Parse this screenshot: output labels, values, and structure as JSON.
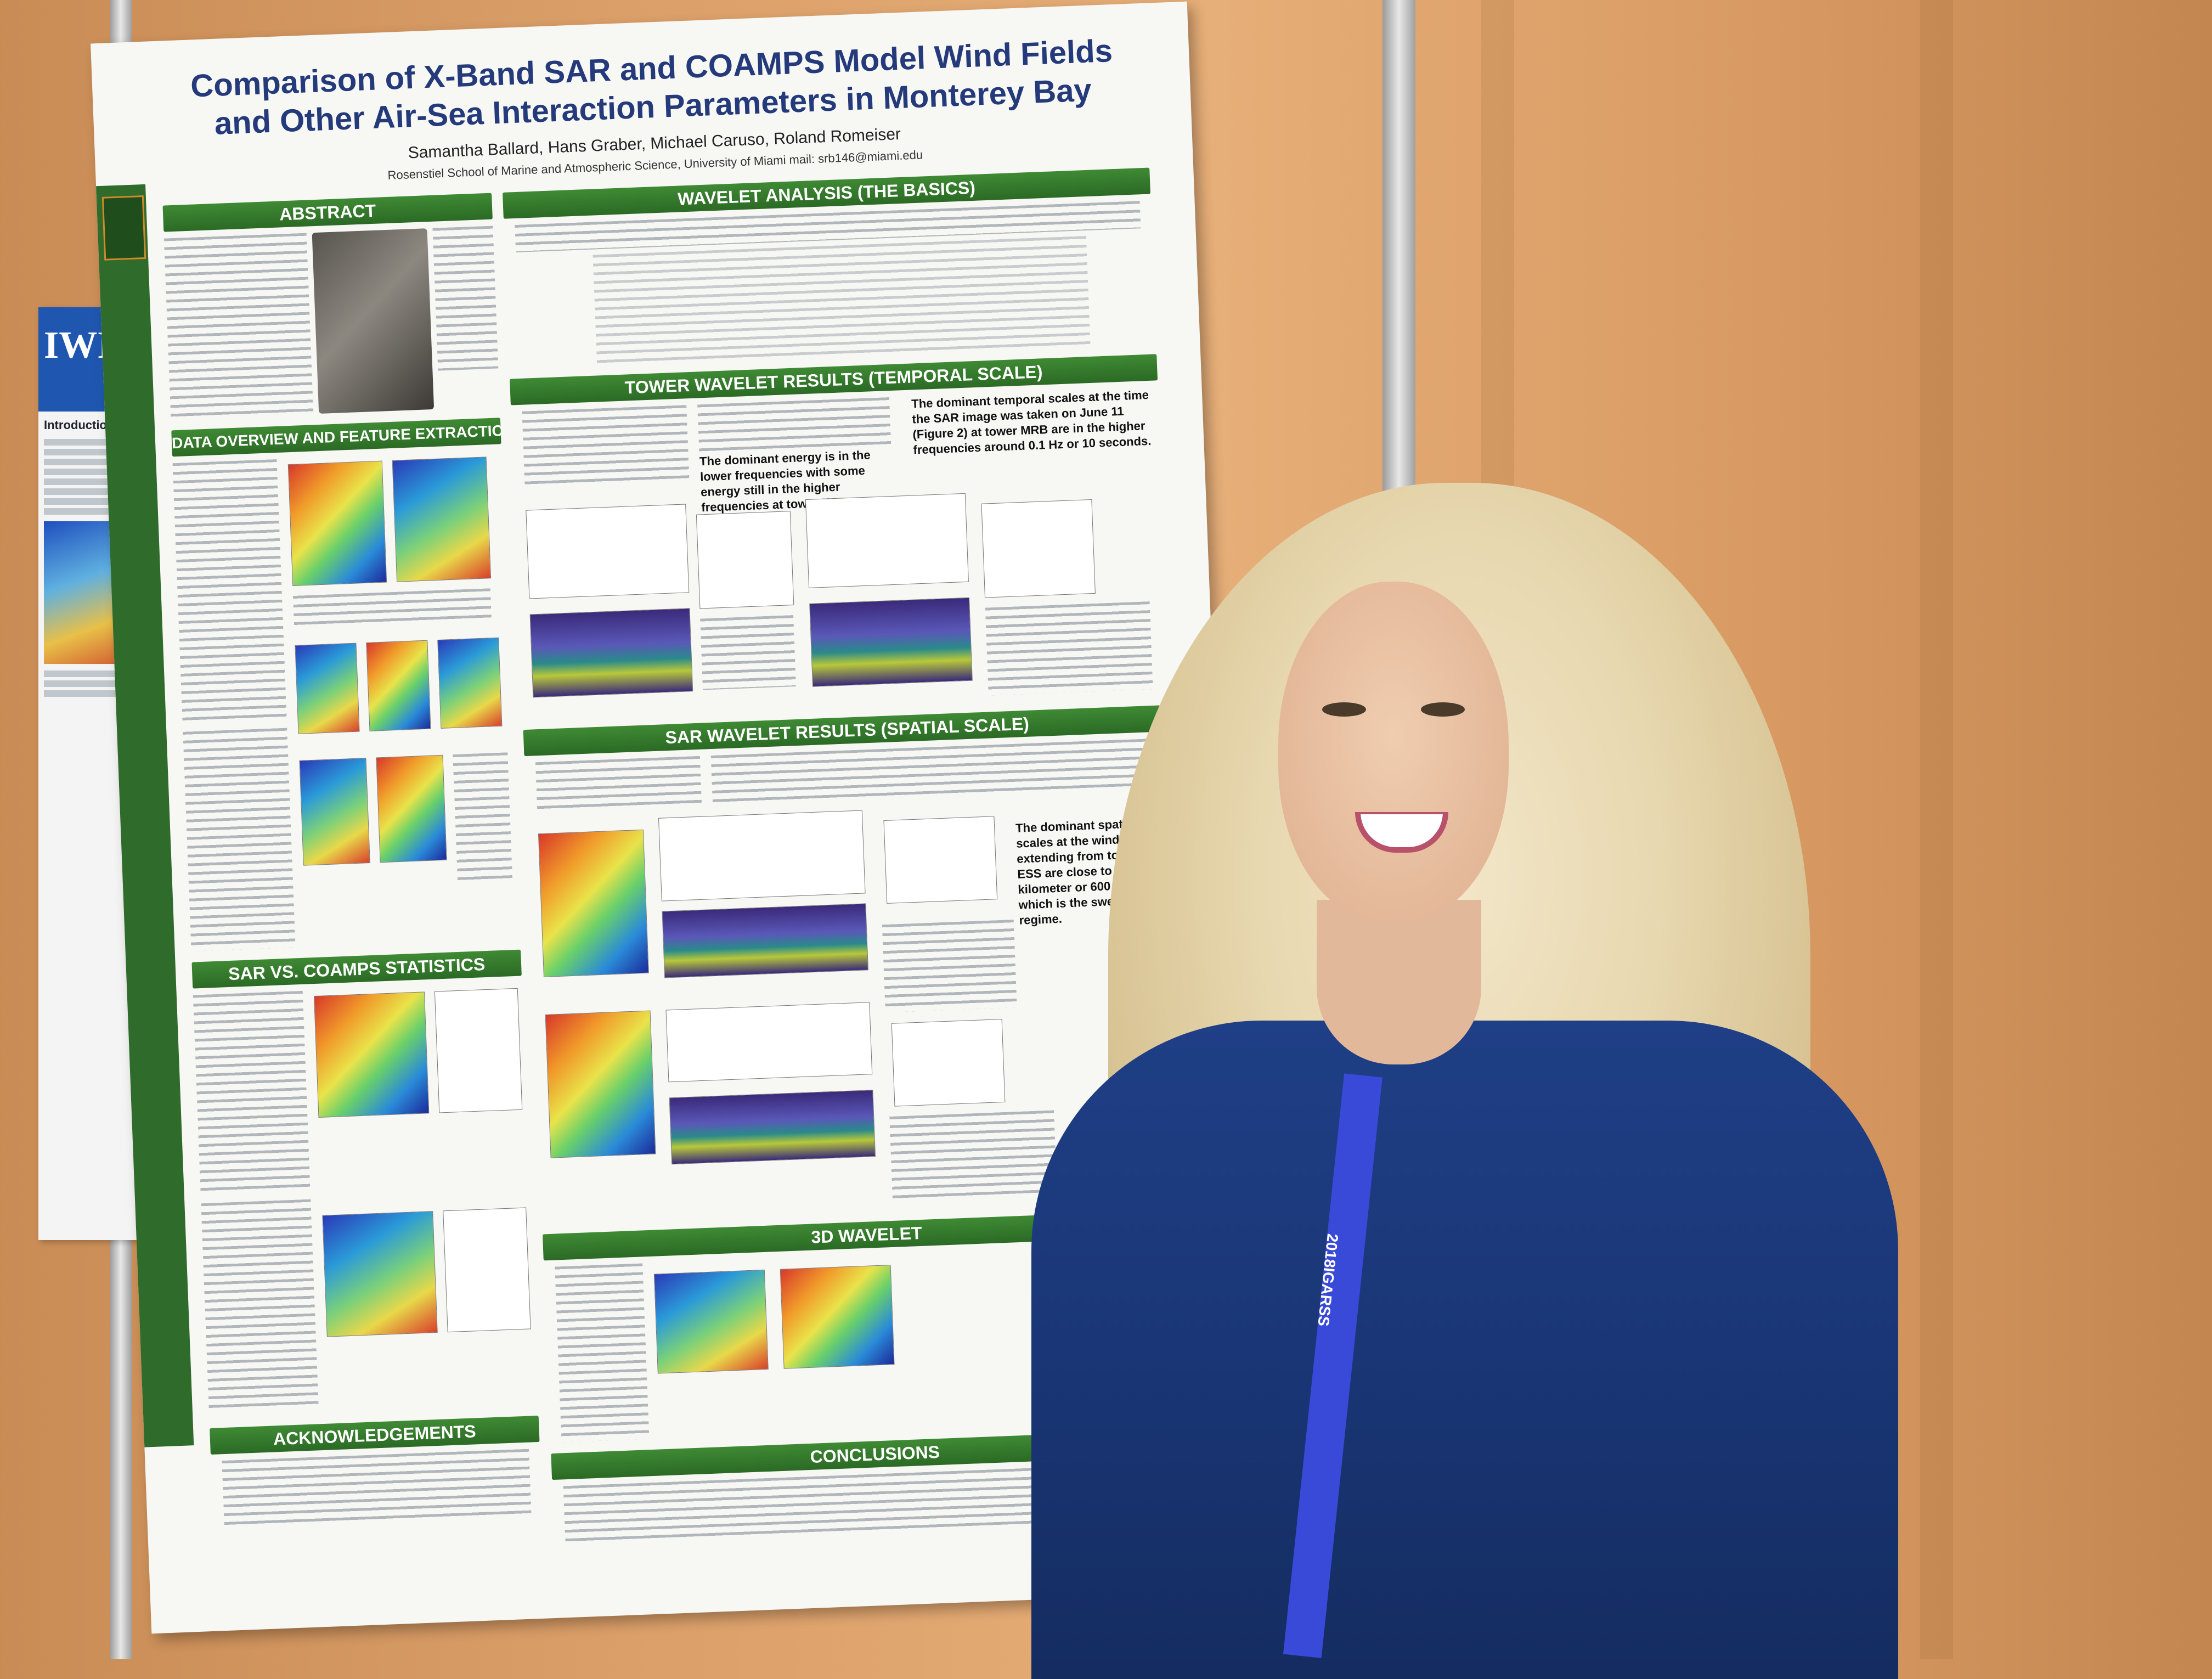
{
  "poster": {
    "title": "Comparison of X-Band SAR and COAMPS Model Wind Fields and Other Air-Sea Interaction Parameters in Monterey Bay",
    "authors": "Samantha Ballard, Hans Graber, Michael Caruso, Roland Romeiser",
    "affiliation": "Rosenstiel School of Marine and Atmospheric Science, University of Miami  mail: srb146@miami.edu",
    "sections": {
      "abstract": "ABSTRACT",
      "data_overview": "DATA OVERVIEW AND FEATURE EXTRACTION",
      "sar_vs_coamps": "SAR VS. COAMPS STATISTICS",
      "acknowledgements": "ACKNOWLEDGEMENTS",
      "wavelet_basics": "WAVELET ANALYSIS (THE BASICS)",
      "tower_results": "TOWER WAVELET RESULTS (TEMPORAL SCALE)",
      "sar_results": "SAR WAVELET RESULTS (SPATIAL SCALE)",
      "wavelet_3d": "3D WAVELET",
      "conclusions": "CONCLUSIONS"
    },
    "highlights": {
      "tower_left": "The dominant energy is in the lower frequencies with some energy still in the higher frequencies at tower ESS.",
      "tower_right": "The dominant temporal scales at the time the SAR image was taken on June 11 (Figure 2) at tower MRB are in the higher frequencies around 0.1 Hz or 10 seconds.",
      "spatial_right": "The dominant spatial scales at the wind front extending from tower ESS are close to half a kilometer or 600 meters, which is the swell regime."
    }
  },
  "left_poster": {
    "heading": "Introduction"
  },
  "lanyard": {
    "text": "2018IGARSS"
  }
}
